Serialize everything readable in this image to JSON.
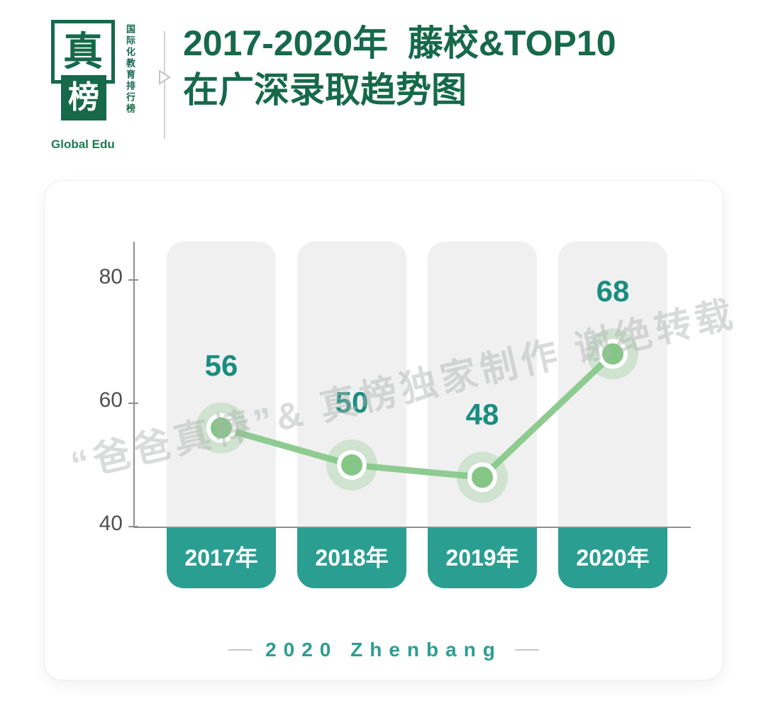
{
  "logo": {
    "char_top": "真",
    "char_bottom": "榜",
    "side_text": "国际化教育排行榜",
    "caption": "Global Edu"
  },
  "title": {
    "line1": "2017-2020年  藤校&TOP10",
    "line2": "在广深录取趋势图"
  },
  "watermark": "“爸爸真棒”&  真榜独家制作  谢绝转载",
  "footer": {
    "label": "2020 Zhenbang"
  },
  "chart_data": {
    "type": "line",
    "title": "2017-2020年 藤校&TOP10 在广深录取趋势图",
    "categories": [
      "2017年",
      "2018年",
      "2019年",
      "2020年"
    ],
    "values": [
      56,
      50,
      48,
      68
    ],
    "yticks": [
      40,
      60,
      80
    ],
    "ylim": [
      40,
      86
    ],
    "grid": false,
    "legend": "none",
    "colors": {
      "title_green": "#16694A",
      "line": "#8FCB90",
      "dot": "#85C687",
      "glow": "rgba(133,198,135,0.30)",
      "value_label": "#1A8D80",
      "category_bg": "#2B9E92",
      "column_bg": "#F0F0F0",
      "axis": "#8F8F8F"
    }
  }
}
